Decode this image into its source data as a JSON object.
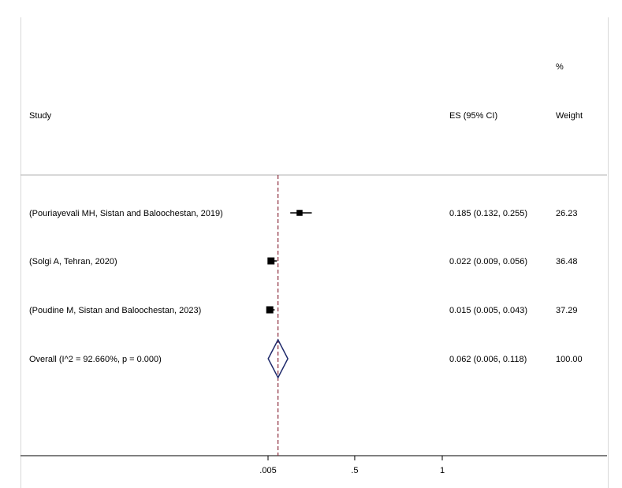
{
  "chart_data": {
    "type": "forest",
    "header": {
      "study": "Study",
      "es": "ES (95% CI)",
      "weight_pct": "%",
      "weight": "Weight"
    },
    "studies": [
      {
        "label": "(Pouriayevali MH, Sistan and Baloochestan, 2019)",
        "es": 0.185,
        "lo": 0.132,
        "hi": 0.255,
        "es_text": "0.185 (0.132, 0.255)",
        "weight": 26.23,
        "weight_text": "26.23"
      },
      {
        "label": "(Solgi A, Tehran, 2020)",
        "es": 0.022,
        "lo": 0.009,
        "hi": 0.056,
        "es_text": "0.022 (0.009, 0.056)",
        "weight": 36.48,
        "weight_text": "36.48"
      },
      {
        "label": "(Poudine M, Sistan and Baloochestan, 2023)",
        "es": 0.015,
        "lo": 0.005,
        "hi": 0.043,
        "es_text": "0.015 (0.005, 0.043)",
        "weight": 37.29,
        "weight_text": "37.29"
      }
    ],
    "overall": {
      "label": "Overall  (I^2 = 92.660%, p = 0.000)",
      "es": 0.062,
      "lo": 0.006,
      "hi": 0.118,
      "es_text": "0.062 (0.006, 0.118)",
      "weight_text": "100.00"
    },
    "xaxis": {
      "ticks": [
        0.005,
        0.5,
        1
      ],
      "tick_labels": [
        ".005",
        ".5",
        "1"
      ]
    },
    "colors": {
      "diamond": "#1f2a6b",
      "overall_line": "#8b2a3a",
      "marker": "#000000"
    }
  }
}
